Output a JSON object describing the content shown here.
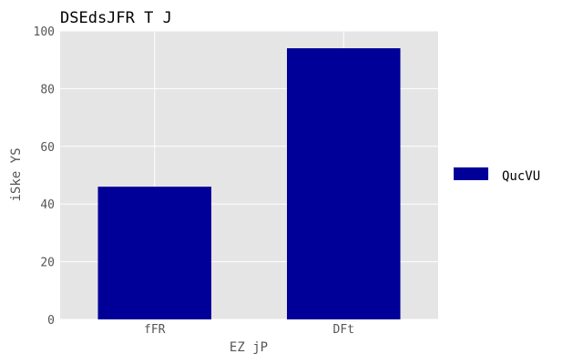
{
  "chart_data": {
    "type": "bar",
    "title": "DSEdsJFR T J",
    "xlabel": "EZ jP",
    "ylabel": "iSke YS",
    "categories": [
      "fFR",
      "DFt"
    ],
    "series": [
      {
        "name": "QucVU",
        "values": [
          46,
          94
        ],
        "color": "#000099"
      }
    ],
    "ylim": [
      0,
      100
    ],
    "yticks": [
      0,
      20,
      40,
      60,
      80,
      100
    ],
    "grid": true,
    "legend_position": "right"
  },
  "style": {
    "plot_background": "#e5e5e5",
    "grid_color": "#ffffff",
    "axis_text_color": "#555555",
    "title_color": "#000000"
  }
}
